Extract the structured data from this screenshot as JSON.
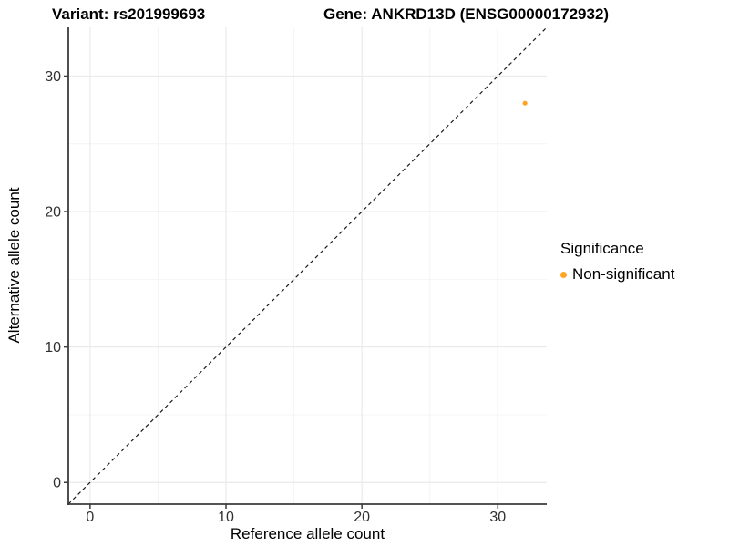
{
  "chart_data": {
    "type": "scatter",
    "titles": {
      "left": "Variant: rs201999693",
      "right": "Gene: ANKRD13D (ENSG00000172932)"
    },
    "xlabel": "Reference allele count",
    "ylabel": "Alternative allele count",
    "xlim": [
      -1.6,
      33.6
    ],
    "ylim": [
      -1.6,
      33.6
    ],
    "xticks": [
      0,
      10,
      20,
      30
    ],
    "yticks": [
      0,
      10,
      20,
      30
    ],
    "xticks_minor": [
      5,
      15,
      25
    ],
    "yticks_minor": [
      5,
      15,
      25
    ],
    "grid": "major+minor",
    "points": [
      {
        "x": 32,
        "y": 28,
        "series": "Non-significant"
      }
    ],
    "reference_line": {
      "slope": 1,
      "intercept": 0,
      "style": "dashed"
    },
    "legend": {
      "title": "Significance",
      "position": "right",
      "entries": [
        {
          "label": "Non-significant",
          "color": "#FFA425"
        }
      ]
    },
    "colors": {
      "point": "#FFA425",
      "grid_major": "#EAEAEA",
      "grid_minor": "#F4F4F4",
      "axis": "#3B3B3B",
      "tick_text": "#303030",
      "ref_line": "#1A1A1A"
    }
  }
}
